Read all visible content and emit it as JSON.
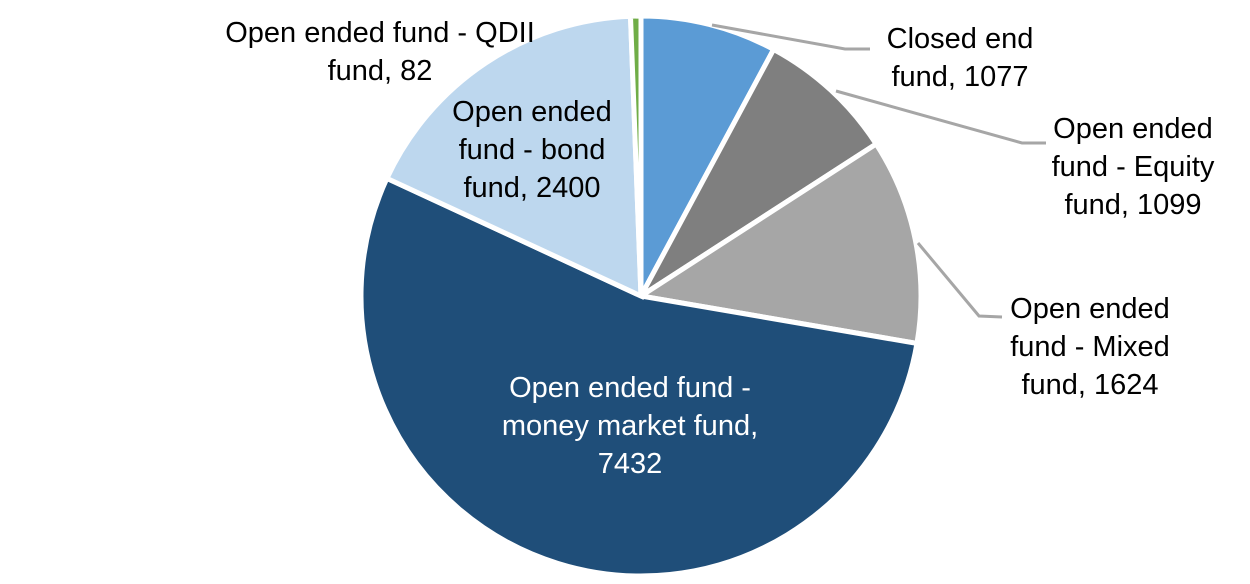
{
  "chart_data": {
    "type": "pie",
    "title": "",
    "legend": "none",
    "start_angle_deg": 0,
    "direction": "clockwise",
    "total": 13714,
    "slices": [
      {
        "id": "closed-end-fund",
        "label": "Closed end fund",
        "value": 1077,
        "color": "#5b9bd5"
      },
      {
        "id": "equity-fund",
        "label": "Open ended fund - Equity fund",
        "value": 1099,
        "color": "#7f7f7f"
      },
      {
        "id": "mixed-fund",
        "label": "Open ended fund - Mixed fund",
        "value": 1624,
        "color": "#a6a6a6"
      },
      {
        "id": "money-market-fund",
        "label": "Open ended fund - money market fund",
        "value": 7432,
        "color": "#1f4e79"
      },
      {
        "id": "bond-fund",
        "label": "Open ended fund - bond fund",
        "value": 2400,
        "color": "#bdd7ee"
      },
      {
        "id": "qdii-fund",
        "label": "Open ended fund - QDII fund",
        "value": 82,
        "color": "#70ad47"
      }
    ],
    "data_label_style": "category name, value",
    "leader_line_color": "#a6a6a6",
    "slice_border_color": "#ffffff"
  },
  "labels": {
    "qdii": {
      "lines": [
        "Open ended fund - QDII",
        "fund, 82"
      ]
    },
    "bond": {
      "lines": [
        "Open ended",
        "fund - bond",
        "fund, 2400"
      ]
    },
    "closed_end": {
      "lines": [
        "Closed end",
        "fund, 1077"
      ]
    },
    "equity": {
      "lines": [
        "Open ended",
        "fund - Equity",
        "fund, 1099"
      ]
    },
    "mixed": {
      "lines": [
        "Open ended",
        "fund - Mixed",
        "fund, 1624"
      ]
    },
    "money_market": {
      "lines": [
        "Open ended fund -",
        "money market fund,",
        "7432"
      ]
    }
  }
}
